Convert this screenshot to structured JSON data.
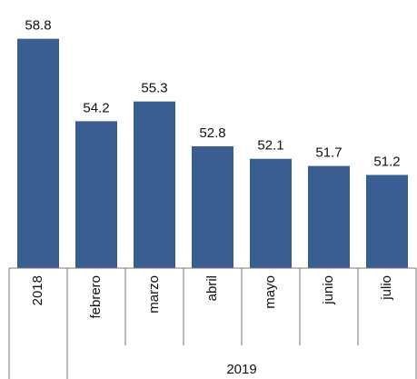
{
  "chart_data": {
    "type": "bar",
    "categories": [
      "2018",
      "febrero",
      "marzo",
      "abril",
      "mayo",
      "junio",
      "julio"
    ],
    "values": [
      58.8,
      54.2,
      55.3,
      52.8,
      52.1,
      51.7,
      51.2
    ],
    "color": "#3a5e92",
    "ylim": [
      46,
      60
    ],
    "groups": [
      {
        "label": "2019",
        "first": 1,
        "last": 6
      }
    ]
  }
}
